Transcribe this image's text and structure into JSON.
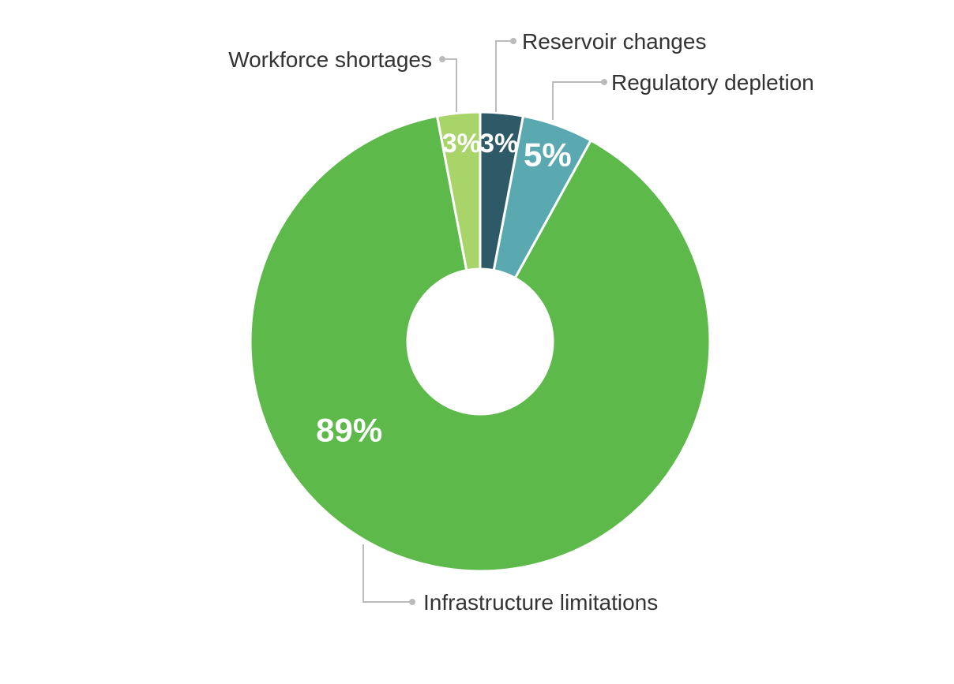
{
  "chart_data": {
    "type": "pie",
    "donut": true,
    "title": "",
    "categories": [
      "Reservoir changes",
      "Regulatory depletion",
      "Infrastructure limitations",
      "Workforce shortages"
    ],
    "values": [
      3,
      5,
      89,
      3
    ],
    "value_labels": [
      "3%",
      "5%",
      "89%",
      "3%"
    ],
    "colors": [
      "#2e5966",
      "#5aa8b0",
      "#5cb94a",
      "#a9d46a"
    ],
    "legend": "none"
  }
}
